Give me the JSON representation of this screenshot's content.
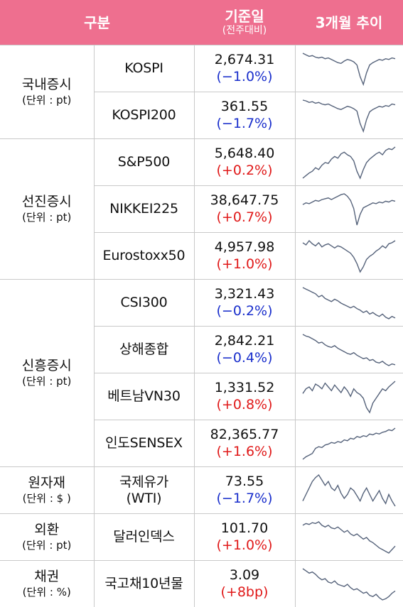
{
  "header": {
    "category": "구분",
    "date": "기준일",
    "date_sub": "(전주대비)",
    "trend": "3개월 추이"
  },
  "groups": [
    {
      "name": "국내증시",
      "unit": "(단위 : pt)",
      "rows": [
        {
          "item": "KOSPI",
          "value": "2,674.31",
          "change": "(−1.0%)",
          "dir": "neg",
          "spark": [
            60,
            58,
            56,
            57,
            55,
            54,
            55,
            53,
            54,
            52,
            50,
            48,
            47,
            50,
            52,
            51,
            49,
            45,
            30,
            20,
            35,
            45,
            48,
            50,
            52,
            51,
            53,
            52,
            54,
            53
          ]
        },
        {
          "item": "KOSPI200",
          "value": "361.55",
          "change": "(−1.7%)",
          "dir": "neg",
          "spark": [
            58,
            57,
            55,
            56,
            54,
            55,
            53,
            52,
            53,
            51,
            49,
            47,
            46,
            48,
            50,
            49,
            47,
            44,
            28,
            18,
            33,
            43,
            46,
            48,
            50,
            49,
            51,
            50,
            53,
            52
          ]
        }
      ]
    },
    {
      "name": "선진증시",
      "unit": "(단위 : pt)",
      "rows": [
        {
          "item": "S&P500",
          "value": "5,648.40",
          "change": "(+0.2%)",
          "dir": "pos",
          "spark": [
            30,
            33,
            36,
            38,
            42,
            40,
            45,
            48,
            47,
            52,
            55,
            53,
            58,
            60,
            57,
            55,
            50,
            38,
            30,
            40,
            48,
            52,
            55,
            58,
            60,
            57,
            62,
            64,
            63,
            66
          ]
        },
        {
          "item": "NIKKEI225",
          "value": "38,647.75",
          "change": "(+0.7%)",
          "dir": "pos",
          "spark": [
            50,
            52,
            51,
            53,
            55,
            54,
            56,
            57,
            58,
            56,
            58,
            60,
            62,
            63,
            60,
            55,
            45,
            25,
            38,
            46,
            48,
            50,
            52,
            51,
            53,
            52,
            54,
            53,
            55,
            54
          ]
        },
        {
          "item": "Eurostoxx50",
          "value": "4,957.98",
          "change": "(+1.0%)",
          "dir": "pos",
          "spark": [
            58,
            56,
            60,
            57,
            55,
            58,
            54,
            56,
            57,
            55,
            53,
            55,
            54,
            52,
            50,
            48,
            44,
            38,
            30,
            35,
            42,
            45,
            47,
            50,
            52,
            55,
            53,
            57,
            58,
            60
          ]
        }
      ]
    },
    {
      "name": "신흥증시",
      "unit": "(단위 : pt)",
      "rows": [
        {
          "item": "CSI300",
          "value": "3,321.43",
          "change": "(−0.2%)",
          "dir": "neg",
          "spark": [
            62,
            60,
            58,
            56,
            54,
            50,
            52,
            48,
            46,
            44,
            47,
            45,
            42,
            40,
            38,
            36,
            38,
            35,
            33,
            30,
            32,
            28,
            30,
            27,
            25,
            28,
            24,
            22,
            25,
            23
          ]
        },
        {
          "item": "상해종합",
          "value": "2,842.21",
          "change": "(−0.4%)",
          "dir": "neg",
          "spark": [
            60,
            58,
            57,
            55,
            53,
            50,
            51,
            48,
            46,
            45,
            47,
            44,
            42,
            40,
            38,
            37,
            39,
            36,
            34,
            32,
            33,
            30,
            31,
            28,
            27,
            29,
            26,
            24,
            26,
            25
          ]
        },
        {
          "item": "베트남VN30",
          "value": "1,331.52",
          "change": "(+0.8%)",
          "dir": "pos",
          "spark": [
            45,
            50,
            52,
            48,
            55,
            53,
            50,
            56,
            52,
            48,
            54,
            50,
            46,
            52,
            48,
            42,
            50,
            46,
            44,
            40,
            30,
            25,
            35,
            40,
            45,
            50,
            48,
            52,
            55,
            58
          ]
        },
        {
          "item": "인도SENSEX",
          "value": "82,365.77",
          "change": "(+1.6%)",
          "dir": "pos",
          "spark": [
            25,
            28,
            30,
            32,
            38,
            40,
            39,
            42,
            43,
            45,
            44,
            46,
            45,
            48,
            47,
            50,
            49,
            52,
            51,
            53,
            52,
            55,
            54,
            56,
            55,
            57,
            58,
            60,
            59,
            62
          ]
        }
      ]
    },
    {
      "name": "원자재",
      "unit": "(단위 : $ )",
      "rows": [
        {
          "item": "국제유가\n(WTI)",
          "value": "73.55",
          "change": "(−1.7%)",
          "dir": "neg",
          "spark": [
            40,
            45,
            50,
            55,
            58,
            60,
            56,
            52,
            55,
            50,
            48,
            52,
            46,
            42,
            45,
            50,
            48,
            44,
            40,
            46,
            50,
            45,
            40,
            44,
            48,
            42,
            38,
            45,
            40,
            36
          ]
        }
      ]
    },
    {
      "name": "외환",
      "unit": "(단위 : pt)",
      "rows": [
        {
          "item": "달러인덱스",
          "value": "101.70",
          "change": "(+1.0%)",
          "dir": "pos",
          "spark": [
            58,
            60,
            59,
            61,
            60,
            62,
            58,
            56,
            58,
            55,
            54,
            56,
            53,
            50,
            52,
            48,
            46,
            48,
            45,
            42,
            44,
            40,
            38,
            35,
            32,
            30,
            28,
            26,
            30,
            34
          ]
        }
      ]
    },
    {
      "name": "채권",
      "unit": "(단위 : %)",
      "rows": [
        {
          "item": "국고채10년물",
          "value": "3.09",
          "change": "(+8bp)",
          "dir": "pos",
          "spark": [
            60,
            58,
            56,
            57,
            55,
            52,
            50,
            51,
            48,
            47,
            49,
            46,
            45,
            44,
            46,
            43,
            41,
            42,
            40,
            38,
            39,
            36,
            35,
            37,
            34,
            32,
            33,
            35,
            38,
            40
          ]
        }
      ]
    }
  ]
}
